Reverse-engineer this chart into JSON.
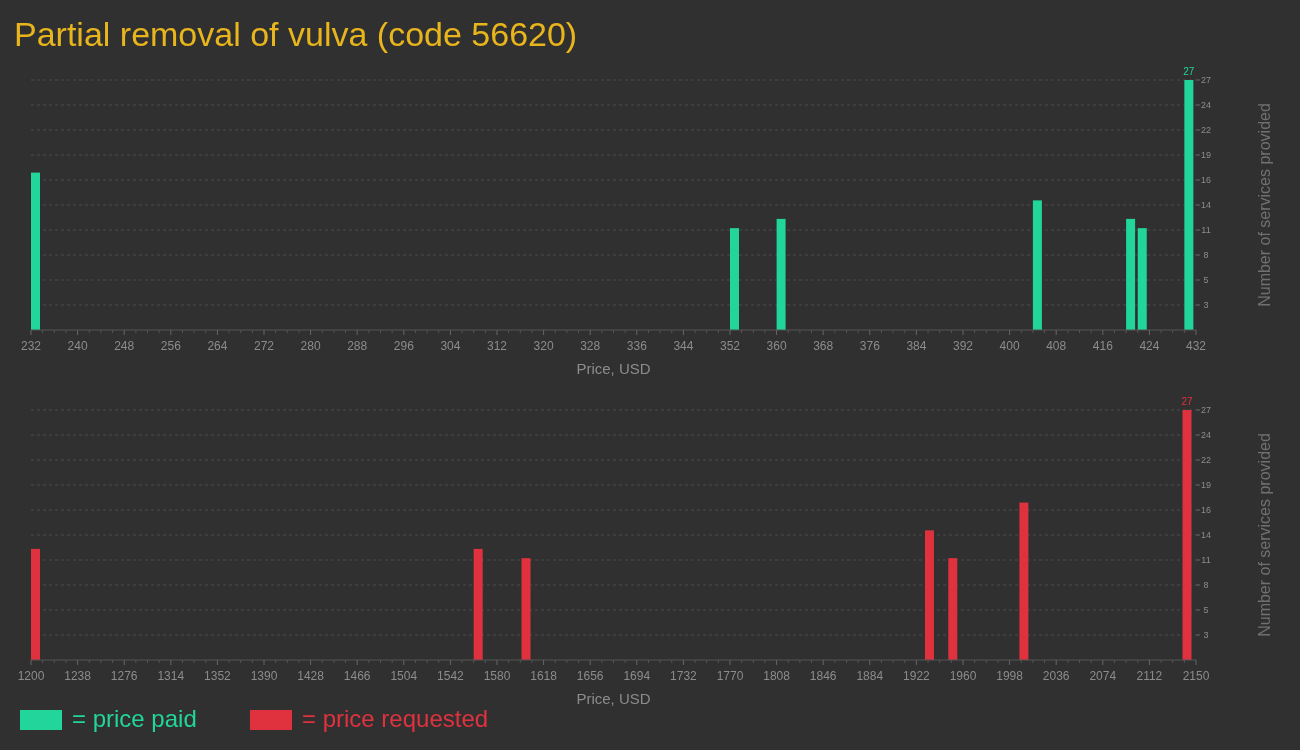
{
  "chart_data": [
    {
      "type": "bar",
      "title": "Partial removal of vulva (code 56620)",
      "xlabel": "Price, USD",
      "ylabel": "Number of services provided",
      "xlim": [
        232,
        432
      ],
      "xticks": [
        232,
        240,
        248,
        256,
        264,
        272,
        280,
        288,
        296,
        304,
        312,
        320,
        328,
        336,
        344,
        352,
        360,
        368,
        376,
        384,
        392,
        400,
        408,
        416,
        424,
        432
      ],
      "ylim": [
        0,
        27
      ],
      "yticks": [
        {
          "value": 2.7,
          "label": "3"
        },
        {
          "value": 5.4,
          "label": "5"
        },
        {
          "value": 8.1,
          "label": "8"
        },
        {
          "value": 10.8,
          "label": "11"
        },
        {
          "value": 13.5,
          "label": "14"
        },
        {
          "value": 16.2,
          "label": "16"
        },
        {
          "value": 18.9,
          "label": "19"
        },
        {
          "value": 21.6,
          "label": "22"
        },
        {
          "value": 24.3,
          "label": "24"
        },
        {
          "value": 27,
          "label": "27"
        }
      ],
      "grid": "y",
      "legend": "bottom left",
      "series": [
        {
          "name": "= price paid",
          "color": "#21d59b",
          "x": [
            232,
            352,
            360,
            404,
            420,
            422,
            430
          ],
          "values": [
            17,
            11,
            12,
            14,
            12,
            11,
            27
          ],
          "value_labels": [
            null,
            null,
            null,
            null,
            null,
            null,
            "27"
          ]
        }
      ]
    },
    {
      "type": "bar",
      "xlabel": "Price, USD",
      "ylabel": "Number of services provided",
      "xlim": [
        1200,
        2150
      ],
      "xticks": [
        1200,
        1238,
        1276,
        1314,
        1352,
        1390,
        1428,
        1466,
        1504,
        1542,
        1580,
        1618,
        1656,
        1694,
        1732,
        1770,
        1808,
        1846,
        1884,
        1922,
        1960,
        1998,
        2036,
        2074,
        2112,
        2150
      ],
      "ylim": [
        0,
        27
      ],
      "yticks": [
        {
          "value": 2.7,
          "label": "3"
        },
        {
          "value": 5.4,
          "label": "5"
        },
        {
          "value": 8.1,
          "label": "8"
        },
        {
          "value": 10.8,
          "label": "11"
        },
        {
          "value": 13.5,
          "label": "14"
        },
        {
          "value": 16.2,
          "label": "16"
        },
        {
          "value": 18.9,
          "label": "19"
        },
        {
          "value": 21.6,
          "label": "22"
        },
        {
          "value": 24.3,
          "label": "24"
        },
        {
          "value": 27,
          "label": "27"
        }
      ],
      "grid": "y",
      "legend": "bottom left",
      "series": [
        {
          "name": "= price requested",
          "color": "#e0313f",
          "x": [
            1200,
            1561,
            1600,
            1929,
            1948,
            2006,
            2139
          ],
          "values": [
            12,
            12,
            11,
            14,
            11,
            17,
            27
          ],
          "value_labels": [
            null,
            null,
            null,
            null,
            null,
            null,
            "27"
          ]
        }
      ]
    }
  ]
}
